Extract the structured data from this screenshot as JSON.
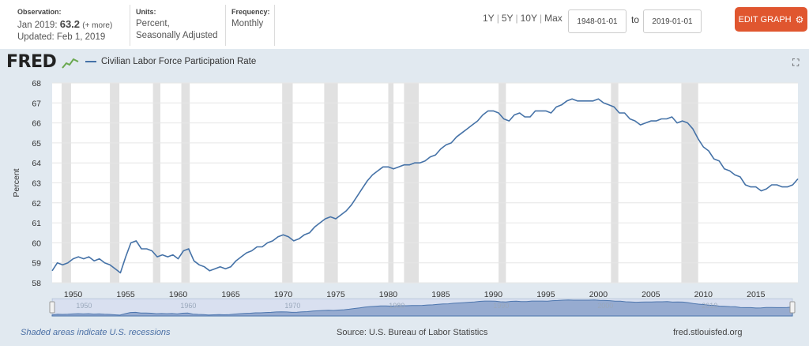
{
  "header": {
    "observation_label": "Observation:",
    "observation_period": "Jan 2019:",
    "observation_value": "63.2",
    "observation_more": "(+ more)",
    "updated": "Updated: Feb 1, 2019",
    "units_label": "Units:",
    "units_line1": "Percent,",
    "units_line2": "Seasonally Adjusted",
    "frequency_label": "Frequency:",
    "frequency_value": "Monthly",
    "range_1y": "1Y",
    "range_5y": "5Y",
    "range_10y": "10Y",
    "range_max": "Max",
    "range_sep": "|",
    "date_from": "1948-01-01",
    "date_to": "2019-01-01",
    "to_label": "to",
    "edit_button": "EDIT GRAPH",
    "gear_icon": "⚙"
  },
  "graph": {
    "logo_text": "FRED",
    "series_name": "Civilian Labor Force Participation Rate",
    "fullscreen_icon": "⛶"
  },
  "footer": {
    "recession_note": "Shaded areas indicate U.S. recessions",
    "source": "Source: U.S. Bureau of Labor Statistics",
    "site": "fred.stlouisfed.org"
  },
  "colors": {
    "line": "#4572a7",
    "recession": "#e1e1e1",
    "plot_bg": "#ffffff",
    "frame_bg": "#e1e9f0",
    "button": "#e0562f",
    "navigator_fill": "#a6b8d5"
  },
  "chart_data": {
    "type": "line",
    "title": "",
    "xlabel": "",
    "ylabel": "Percent",
    "xlim": [
      1948.0,
      2019.0
    ],
    "ylim": [
      58,
      68
    ],
    "y_ticks": [
      58,
      59,
      60,
      61,
      62,
      63,
      64,
      65,
      66,
      67,
      68
    ],
    "x_ticks": [
      1950,
      1955,
      1960,
      1965,
      1970,
      1975,
      1980,
      1985,
      1990,
      1995,
      2000,
      2005,
      2010,
      2015
    ],
    "grid": true,
    "recessions": [
      [
        1948.9,
        1949.8
      ],
      [
        1953.5,
        1954.4
      ],
      [
        1957.6,
        1958.3
      ],
      [
        1960.3,
        1961.1
      ],
      [
        1969.9,
        1970.9
      ],
      [
        1973.9,
        1975.2
      ],
      [
        1980.0,
        1980.5
      ],
      [
        1981.5,
        1982.9
      ],
      [
        1990.5,
        1991.2
      ],
      [
        2001.2,
        2001.9
      ],
      [
        2007.9,
        2009.5
      ]
    ],
    "series": [
      {
        "name": "Civilian Labor Force Participation Rate",
        "x": [
          1948.0,
          1948.5,
          1949.0,
          1949.5,
          1950.0,
          1950.5,
          1951.0,
          1951.5,
          1952.0,
          1952.5,
          1953.0,
          1953.5,
          1954.0,
          1954.5,
          1955.0,
          1955.5,
          1956.0,
          1956.5,
          1957.0,
          1957.5,
          1958.0,
          1958.5,
          1959.0,
          1959.5,
          1960.0,
          1960.5,
          1961.0,
          1961.5,
          1962.0,
          1962.5,
          1963.0,
          1963.5,
          1964.0,
          1964.5,
          1965.0,
          1965.5,
          1966.0,
          1966.5,
          1967.0,
          1967.5,
          1968.0,
          1968.5,
          1969.0,
          1969.5,
          1970.0,
          1970.5,
          1971.0,
          1971.5,
          1972.0,
          1972.5,
          1973.0,
          1973.5,
          1974.0,
          1974.5,
          1975.0,
          1975.5,
          1976.0,
          1976.5,
          1977.0,
          1977.5,
          1978.0,
          1978.5,
          1979.0,
          1979.5,
          1980.0,
          1980.5,
          1981.0,
          1981.5,
          1982.0,
          1982.5,
          1983.0,
          1983.5,
          1984.0,
          1984.5,
          1985.0,
          1985.5,
          1986.0,
          1986.5,
          1987.0,
          1987.5,
          1988.0,
          1988.5,
          1989.0,
          1989.5,
          1990.0,
          1990.5,
          1991.0,
          1991.5,
          1992.0,
          1992.5,
          1993.0,
          1993.5,
          1994.0,
          1994.5,
          1995.0,
          1995.5,
          1996.0,
          1996.5,
          1997.0,
          1997.5,
          1998.0,
          1998.5,
          1999.0,
          1999.5,
          2000.0,
          2000.5,
          2001.0,
          2001.5,
          2002.0,
          2002.5,
          2003.0,
          2003.5,
          2004.0,
          2004.5,
          2005.0,
          2005.5,
          2006.0,
          2006.5,
          2007.0,
          2007.5,
          2008.0,
          2008.5,
          2009.0,
          2009.5,
          2010.0,
          2010.5,
          2011.0,
          2011.5,
          2012.0,
          2012.5,
          2013.0,
          2013.5,
          2014.0,
          2014.5,
          2015.0,
          2015.5,
          2016.0,
          2016.5,
          2017.0,
          2017.5,
          2018.0,
          2018.5,
          2019.0
        ],
        "values": [
          58.6,
          59.0,
          58.9,
          59.0,
          59.2,
          59.3,
          59.2,
          59.3,
          59.1,
          59.2,
          59.0,
          58.9,
          58.7,
          58.5,
          59.3,
          60.0,
          60.1,
          59.7,
          59.7,
          59.6,
          59.3,
          59.4,
          59.3,
          59.4,
          59.2,
          59.6,
          59.7,
          59.1,
          58.9,
          58.8,
          58.6,
          58.7,
          58.8,
          58.7,
          58.8,
          59.1,
          59.3,
          59.5,
          59.6,
          59.8,
          59.8,
          60.0,
          60.1,
          60.3,
          60.4,
          60.3,
          60.1,
          60.2,
          60.4,
          60.5,
          60.8,
          61.0,
          61.2,
          61.3,
          61.2,
          61.4,
          61.6,
          61.9,
          62.3,
          62.7,
          63.1,
          63.4,
          63.6,
          63.8,
          63.8,
          63.7,
          63.8,
          63.9,
          63.9,
          64.0,
          64.0,
          64.1,
          64.3,
          64.4,
          64.7,
          64.9,
          65.0,
          65.3,
          65.5,
          65.7,
          65.9,
          66.1,
          66.4,
          66.6,
          66.6,
          66.5,
          66.2,
          66.1,
          66.4,
          66.5,
          66.3,
          66.3,
          66.6,
          66.6,
          66.6,
          66.5,
          66.8,
          66.9,
          67.1,
          67.2,
          67.1,
          67.1,
          67.1,
          67.1,
          67.2,
          67.0,
          66.9,
          66.8,
          66.5,
          66.5,
          66.2,
          66.1,
          65.9,
          66.0,
          66.1,
          66.1,
          66.2,
          66.2,
          66.3,
          66.0,
          66.1,
          66.0,
          65.7,
          65.2,
          64.8,
          64.6,
          64.2,
          64.1,
          63.7,
          63.6,
          63.4,
          63.3,
          62.9,
          62.8,
          62.8,
          62.6,
          62.7,
          62.9,
          62.9,
          62.8,
          62.8,
          62.9,
          63.2
        ]
      }
    ]
  }
}
